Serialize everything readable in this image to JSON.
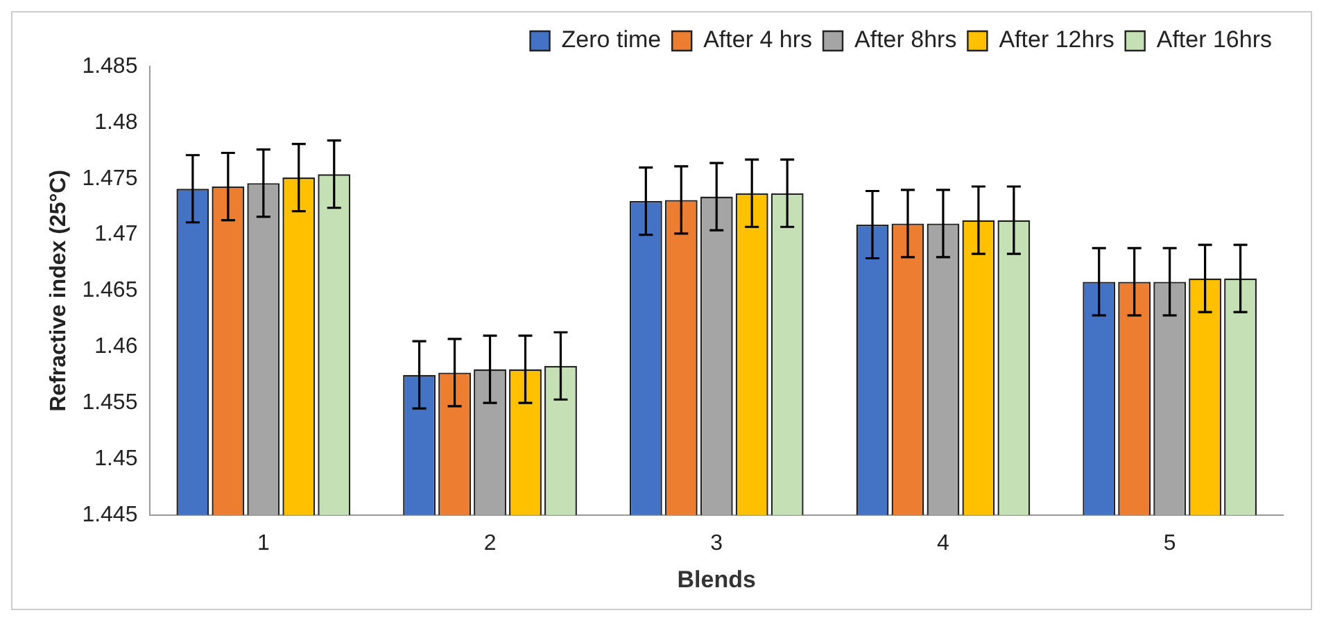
{
  "chart_data": {
    "type": "bar",
    "xlabel": "Blends",
    "ylabel": "Refractive index (25°C)",
    "categories": [
      "1",
      "2",
      "3",
      "4",
      "5"
    ],
    "series": [
      {
        "name": "Zero time",
        "color": "#4472c4",
        "values": [
          1.4741,
          1.4575,
          1.473,
          1.4709,
          1.4658
        ],
        "errors": [
          0.003,
          0.003,
          0.003,
          0.003,
          0.003
        ]
      },
      {
        "name": "After 4 hrs",
        "color": "#ed7d31",
        "values": [
          1.4743,
          1.4577,
          1.4731,
          1.471,
          1.4658
        ],
        "errors": [
          0.003,
          0.003,
          0.003,
          0.003,
          0.003
        ]
      },
      {
        "name": "After 8hrs",
        "color": "#a5a5a5",
        "values": [
          1.4746,
          1.458,
          1.4734,
          1.471,
          1.4658
        ],
        "errors": [
          0.003,
          0.003,
          0.003,
          0.003,
          0.003
        ]
      },
      {
        "name": "After 12hrs",
        "color": "#ffc000",
        "values": [
          1.4751,
          1.458,
          1.4737,
          1.4713,
          1.4661
        ],
        "errors": [
          0.003,
          0.003,
          0.003,
          0.003,
          0.003
        ]
      },
      {
        "name": "After 16hrs",
        "color": "#c5e0b4",
        "values": [
          1.4754,
          1.4583,
          1.4737,
          1.4713,
          1.4661
        ],
        "errors": [
          0.003,
          0.003,
          0.003,
          0.003,
          0.003
        ]
      }
    ],
    "ylim": [
      1.445,
      1.485
    ],
    "yticks": [
      1.445,
      1.45,
      1.455,
      1.46,
      1.465,
      1.47,
      1.475,
      1.48,
      1.485
    ],
    "grid": false,
    "legend": "top right"
  }
}
